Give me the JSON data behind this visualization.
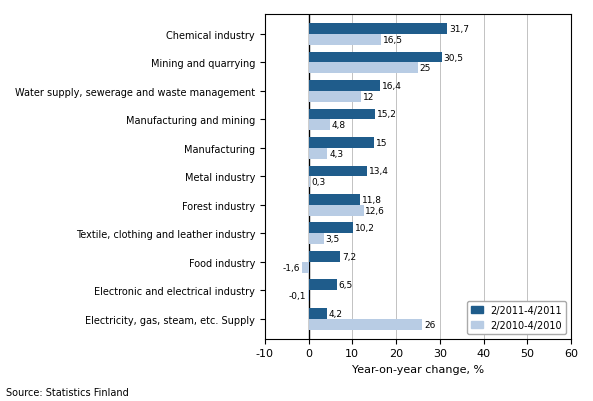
{
  "categories": [
    "Electricity, gas, steam, etc. Supply",
    "Electronic and electrical industry",
    "Food industry",
    "Textile, clothing and leather industry",
    "Forest industry",
    "Metal industry",
    "Manufacturing",
    "Manufacturing and mining",
    "Water supply, sewerage and waste management",
    "Mining and quarrying",
    "Chemical industry"
  ],
  "series_2011": [
    4.2,
    6.5,
    7.2,
    10.2,
    11.8,
    13.4,
    15.0,
    15.2,
    16.4,
    30.5,
    31.7
  ],
  "series_2010": [
    26.0,
    -0.1,
    -1.6,
    3.5,
    12.6,
    0.3,
    4.3,
    4.8,
    12.0,
    25.0,
    16.5
  ],
  "color_2011": "#1F5C8B",
  "color_2010": "#B8CCE4",
  "xlabel": "Year-on-year change, %",
  "xlim": [
    -10,
    60
  ],
  "xticks": [
    -10,
    0,
    10,
    20,
    30,
    40,
    50,
    60
  ],
  "legend_2011": "2/2011-4/2011",
  "legend_2010": "2/2010-4/2010",
  "source": "Source: Statistics Finland",
  "bar_height": 0.38
}
